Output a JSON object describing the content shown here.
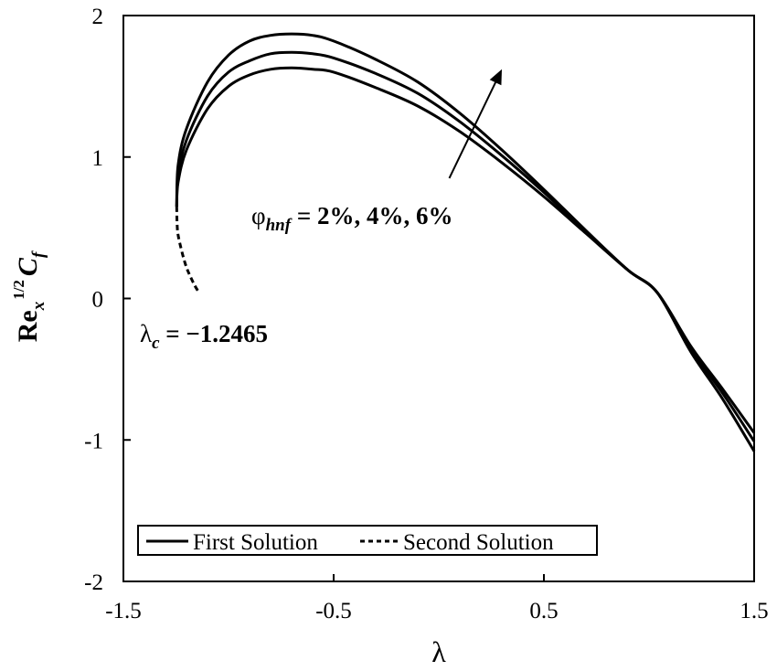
{
  "chart_data": {
    "type": "line",
    "xlabel": "λ",
    "ylabel": {
      "base": "Re",
      "sub": "x",
      "sup": "1/2",
      "main": "C",
      "main_sub": "f"
    },
    "xlim": [
      -1.5,
      1.5
    ],
    "ylim": [
      -2,
      2
    ],
    "x_ticks": [
      -1.5,
      -0.5,
      0.5,
      1.5
    ],
    "x_tick_labels": [
      "-1.5",
      "-0.5",
      "0.5",
      "1.5"
    ],
    "y_ticks": [
      -2,
      -1,
      0,
      1,
      2
    ],
    "y_tick_labels": [
      "-2",
      "-1",
      "0",
      "1",
      "2"
    ],
    "grid": false,
    "legend_position": "bottom-left",
    "legend": [
      {
        "label": "First Solution",
        "style": "solid"
      },
      {
        "label": "Second Solution",
        "style": "dashed"
      }
    ],
    "annotations": {
      "phi": {
        "symbol": "φ",
        "sub": "hnf",
        "text": " = 2%, 4%, 6%"
      },
      "lambda_c": {
        "symbol": "λ",
        "sub": "c",
        "text": " = −1.2465"
      }
    },
    "arrow": {
      "from": [
        0.05,
        0.85
      ],
      "to": [
        0.3,
        1.62
      ]
    },
    "series": [
      {
        "style": "solid",
        "x": [
          -1.2465,
          -1.24,
          -1.2,
          -1.1,
          -1.0,
          -0.9,
          -0.8,
          -0.7,
          -0.6,
          -0.5,
          -0.3,
          -0.1,
          0.1,
          0.3,
          0.5,
          0.7,
          0.9,
          1.04,
          1.2,
          1.35,
          1.5
        ],
        "y": [
          0.65,
          0.82,
          1.05,
          1.34,
          1.5,
          1.58,
          1.62,
          1.63,
          1.62,
          1.6,
          1.49,
          1.36,
          1.18,
          0.96,
          0.72,
          0.46,
          0.2,
          0.04,
          -0.34,
          -0.64,
          -0.95
        ]
      },
      {
        "style": "solid",
        "x": [
          -1.2465,
          -1.24,
          -1.2,
          -1.1,
          -1.0,
          -0.9,
          -0.8,
          -0.7,
          -0.6,
          -0.5,
          -0.3,
          -0.1,
          0.1,
          0.3,
          0.5,
          0.7,
          0.9,
          1.04,
          1.2,
          1.35,
          1.5
        ],
        "y": [
          0.65,
          0.87,
          1.12,
          1.43,
          1.6,
          1.68,
          1.73,
          1.74,
          1.73,
          1.7,
          1.59,
          1.45,
          1.25,
          1.01,
          0.75,
          0.47,
          0.2,
          0.04,
          -0.36,
          -0.67,
          -1.01
        ]
      },
      {
        "style": "solid",
        "x": [
          -1.2465,
          -1.24,
          -1.2,
          -1.1,
          -1.0,
          -0.9,
          -0.8,
          -0.7,
          -0.6,
          -0.5,
          -0.3,
          -0.1,
          0.1,
          0.3,
          0.5,
          0.7,
          0.9,
          1.04,
          1.2,
          1.35,
          1.5
        ],
        "y": [
          0.65,
          0.94,
          1.2,
          1.53,
          1.72,
          1.82,
          1.86,
          1.87,
          1.86,
          1.82,
          1.69,
          1.53,
          1.31,
          1.05,
          0.77,
          0.48,
          0.2,
          0.04,
          -0.38,
          -0.71,
          -1.08
        ]
      },
      {
        "style": "dashed",
        "x": [
          -1.2465,
          -1.245,
          -1.24,
          -1.22,
          -1.2,
          -1.18,
          -1.16,
          -1.14
        ],
        "y": [
          0.65,
          0.55,
          0.45,
          0.32,
          0.22,
          0.15,
          0.09,
          0.04
        ]
      }
    ]
  }
}
